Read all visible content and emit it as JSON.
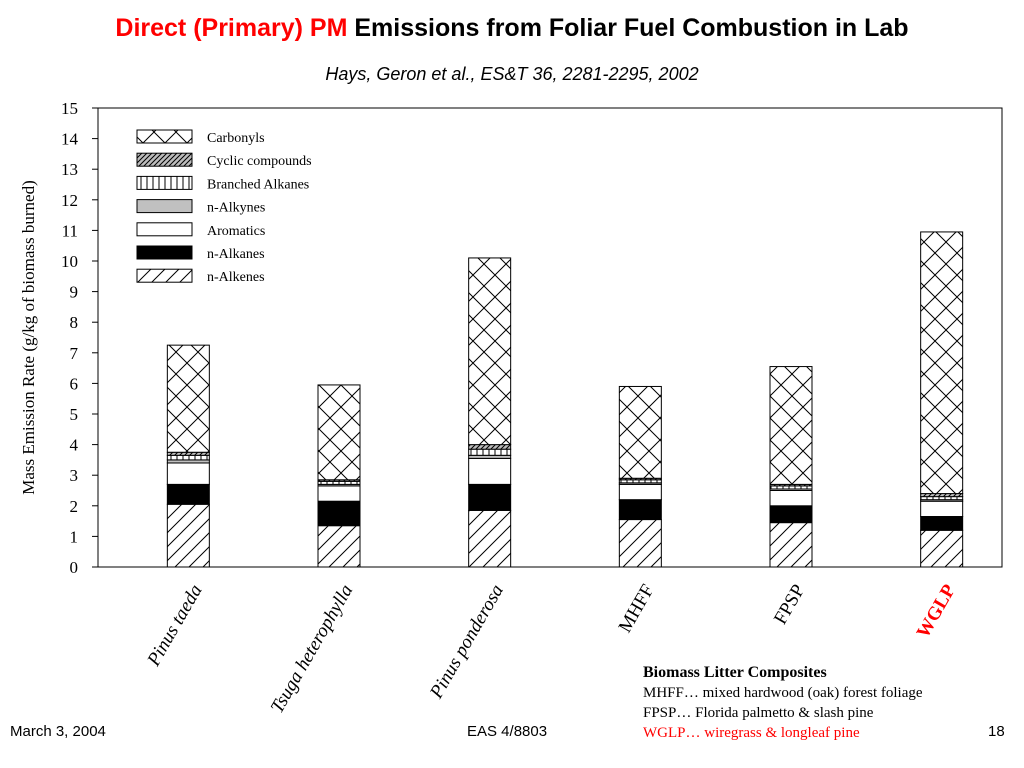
{
  "slide": {
    "title_red": "Direct (Primary) PM",
    "title_black": " Emissions from Foliar Fuel Combustion in Lab",
    "subtitle": "Hays, Geron et al., ES&T 36, 2281-2295, 2002",
    "footer_date": "March 3, 2004",
    "footer_course": "EAS 4/8803",
    "footer_page": "18"
  },
  "composites": {
    "heading": "Biomass Litter Composites",
    "lines": [
      {
        "text": "MHFF… mixed hardwood (oak) forest foliage",
        "color": "#000000"
      },
      {
        "text": "FPSP…  Florida palmetto & slash pine",
        "color": "#000000"
      },
      {
        "text": "WGLP… wiregrass & longleaf pine",
        "color": "#ff0000"
      }
    ]
  },
  "chart_data": {
    "type": "bar",
    "stacked": true,
    "ylabel": "Mass Emission Rate (g/kg of biomass burned)",
    "xlabel": "",
    "ylim": [
      0,
      15
    ],
    "yticks": [
      0,
      1,
      2,
      3,
      4,
      5,
      6,
      7,
      8,
      9,
      10,
      11,
      12,
      13,
      14,
      15
    ],
    "grid": false,
    "legend_position": "top-left",
    "categories": [
      "Pinus taeda",
      "Tsuga heterophylla",
      "Pinus ponderosa",
      "MHFF",
      "FPSP",
      "WGLP"
    ],
    "category_italic": [
      true,
      true,
      true,
      false,
      false,
      false
    ],
    "category_colors": [
      "#000000",
      "#000000",
      "#000000",
      "#000000",
      "#000000",
      "#ff0000"
    ],
    "series": [
      {
        "name": "n-Alkenes",
        "pattern": "forward-diagonal",
        "values": [
          2.05,
          1.35,
          1.85,
          1.55,
          1.45,
          1.2
        ]
      },
      {
        "name": "n-Alkanes",
        "pattern": "solid-black",
        "values": [
          0.65,
          0.8,
          0.85,
          0.65,
          0.55,
          0.45
        ]
      },
      {
        "name": "Aromatics",
        "pattern": "white",
        "values": [
          0.7,
          0.5,
          0.85,
          0.5,
          0.5,
          0.5
        ]
      },
      {
        "name": "n-Alkynes",
        "pattern": "light-gray",
        "values": [
          0.1,
          0.05,
          0.1,
          0.05,
          0.05,
          0.05
        ]
      },
      {
        "name": "Branched Alkanes",
        "pattern": "vertical-lines",
        "values": [
          0.15,
          0.1,
          0.2,
          0.1,
          0.1,
          0.1
        ]
      },
      {
        "name": "Cyclic compounds",
        "pattern": "dense-diagonal-gray",
        "values": [
          0.1,
          0.05,
          0.15,
          0.05,
          0.05,
          0.1
        ]
      },
      {
        "name": "Carbonyls",
        "pattern": "crosshatch",
        "values": [
          3.5,
          3.1,
          6.1,
          3.0,
          3.85,
          8.55
        ]
      }
    ],
    "legend_order": [
      "Carbonyls",
      "Cyclic compounds",
      "Branched Alkanes",
      "n-Alkynes",
      "Aromatics",
      "n-Alkanes",
      "n-Alkenes"
    ]
  }
}
